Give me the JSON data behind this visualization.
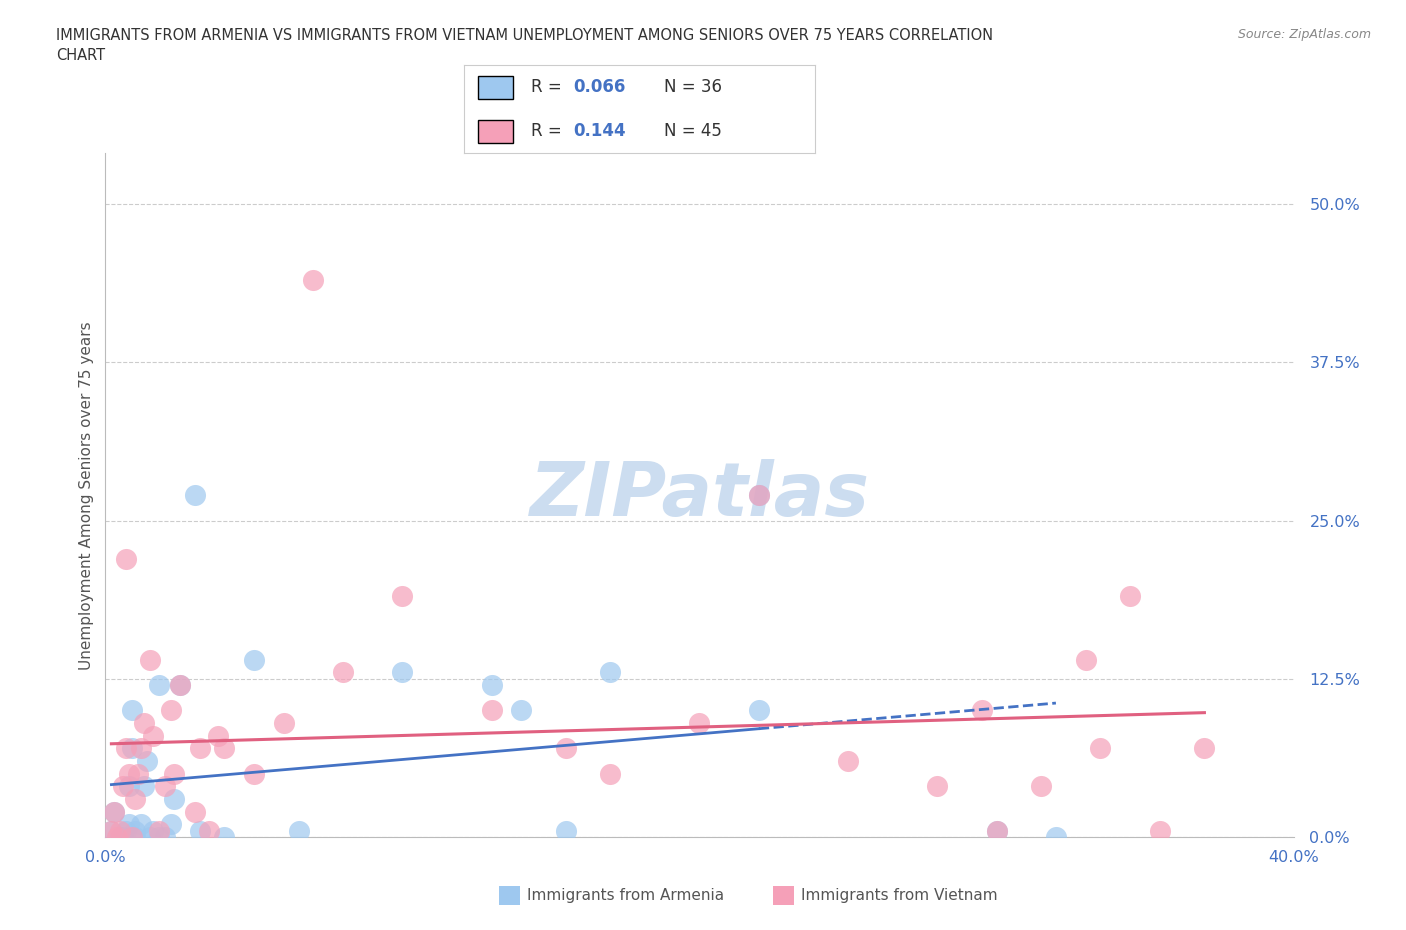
{
  "title_line1": "IMMIGRANTS FROM ARMENIA VS IMMIGRANTS FROM VIETNAM UNEMPLOYMENT AMONG SENIORS OVER 75 YEARS CORRELATION",
  "title_line2": "CHART",
  "source_text": "Source: ZipAtlas.com",
  "ylabel": "Unemployment Among Seniors over 75 years",
  "xlim": [
    0.0,
    0.4
  ],
  "ylim": [
    0.0,
    0.54
  ],
  "ytick_vals": [
    0.0,
    0.125,
    0.25,
    0.375,
    0.5
  ],
  "ytick_labels": [
    "0.0%",
    "12.5%",
    "25.0%",
    "37.5%",
    "50.0%"
  ],
  "xtick_vals": [
    0.0,
    0.1,
    0.2,
    0.3,
    0.4
  ],
  "xtick_labels": [
    "0.0%",
    "",
    "",
    "",
    "40.0%"
  ],
  "armenia_color": "#9ec8ef",
  "vietnam_color": "#f5a0b8",
  "armenia_line_color": "#4472c4",
  "vietnam_line_color": "#e06080",
  "r_text_color": "#4472c4",
  "n_text_color": "#333333",
  "legend_r_armenia": "0.066",
  "legend_n_armenia": "36",
  "legend_r_vietnam": "0.144",
  "legend_n_vietnam": "45",
  "watermark_color": "#ccddf0",
  "grid_color": "#cccccc",
  "armenia_x": [
    0.002,
    0.003,
    0.005,
    0.006,
    0.007,
    0.008,
    0.008,
    0.009,
    0.009,
    0.01,
    0.01,
    0.012,
    0.013,
    0.014,
    0.015,
    0.016,
    0.018,
    0.018,
    0.02,
    0.022,
    0.023,
    0.025,
    0.03,
    0.032,
    0.04,
    0.05,
    0.065,
    0.1,
    0.13,
    0.14,
    0.155,
    0.17,
    0.22,
    0.22,
    0.3,
    0.32
  ],
  "armenia_y": [
    0.005,
    0.02,
    0.0,
    0.0,
    0.005,
    0.01,
    0.04,
    0.07,
    0.1,
    0.0,
    0.005,
    0.01,
    0.04,
    0.06,
    0.0,
    0.005,
    0.0,
    0.12,
    0.0,
    0.01,
    0.03,
    0.12,
    0.27,
    0.005,
    0.0,
    0.14,
    0.005,
    0.13,
    0.12,
    0.1,
    0.005,
    0.13,
    0.1,
    0.27,
    0.005,
    0.0
  ],
  "vietnam_x": [
    0.002,
    0.003,
    0.004,
    0.005,
    0.006,
    0.007,
    0.007,
    0.008,
    0.009,
    0.01,
    0.011,
    0.012,
    0.013,
    0.015,
    0.016,
    0.018,
    0.02,
    0.022,
    0.023,
    0.025,
    0.03,
    0.032,
    0.035,
    0.038,
    0.04,
    0.05,
    0.06,
    0.07,
    0.08,
    0.1,
    0.13,
    0.155,
    0.17,
    0.2,
    0.22,
    0.25,
    0.28,
    0.295,
    0.3,
    0.315,
    0.33,
    0.335,
    0.345,
    0.355,
    0.37
  ],
  "vietnam_y": [
    0.005,
    0.02,
    0.0,
    0.005,
    0.04,
    0.07,
    0.22,
    0.05,
    0.0,
    0.03,
    0.05,
    0.07,
    0.09,
    0.14,
    0.08,
    0.005,
    0.04,
    0.1,
    0.05,
    0.12,
    0.02,
    0.07,
    0.005,
    0.08,
    0.07,
    0.05,
    0.09,
    0.44,
    0.13,
    0.19,
    0.1,
    0.07,
    0.05,
    0.09,
    0.27,
    0.06,
    0.04,
    0.1,
    0.005,
    0.04,
    0.14,
    0.07,
    0.19,
    0.005,
    0.07
  ]
}
